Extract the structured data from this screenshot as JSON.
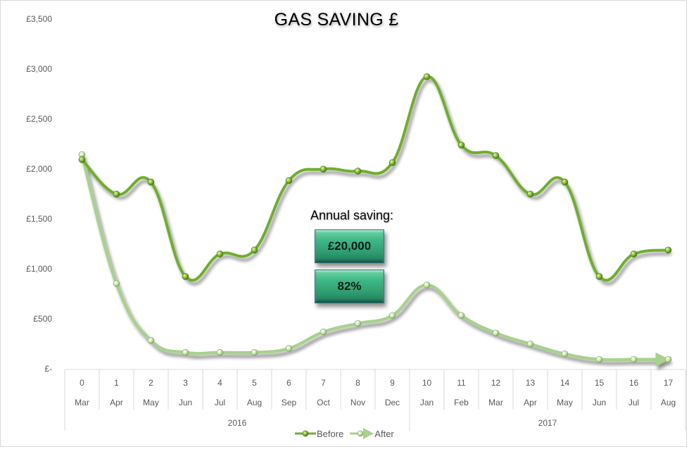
{
  "chart_data": {
    "type": "line",
    "title": "GAS SAVING £",
    "xlabel": "",
    "ylabel": "",
    "ylim": [
      0,
      3500
    ],
    "yticks": [
      "£-",
      "£500",
      "£1,000",
      "£1,500",
      "£2,000",
      "£2,500",
      "£3,000",
      "£3,500"
    ],
    "ytick_values": [
      0,
      500,
      1000,
      1500,
      2000,
      2500,
      3000,
      3500
    ],
    "x": [
      0,
      1,
      2,
      3,
      4,
      5,
      6,
      7,
      8,
      9,
      10,
      11,
      12,
      13,
      14,
      15,
      16,
      17
    ],
    "months": [
      "Mar",
      "Apr",
      "May",
      "Jun",
      "Jul",
      "Aug",
      "Sep",
      "Oct",
      "Nov",
      "Dec",
      "Jan",
      "Feb",
      "Mar",
      "Apr",
      "May",
      "Jun",
      "Jul",
      "Aug"
    ],
    "years": [
      {
        "label": "2016",
        "from": 0,
        "to": 9
      },
      {
        "label": "2017",
        "from": 10,
        "to": 17
      }
    ],
    "series": [
      {
        "name": "Before",
        "color": "#70ad2f",
        "values": [
          2100,
          1755,
          1875,
          930,
          1155,
          1195,
          1890,
          2005,
          1985,
          2070,
          2930,
          2245,
          2140,
          1755,
          1875,
          930,
          1155,
          1195
        ]
      },
      {
        "name": "After",
        "color": "#a9d18e",
        "values": [
          2150,
          860,
          290,
          170,
          170,
          170,
          210,
          375,
          460,
          540,
          845,
          540,
          365,
          255,
          155,
          100,
          100,
          100
        ]
      }
    ],
    "grid": false,
    "legend_position": "bottom",
    "annotations": [
      "Annual saving:",
      "£20,000",
      "82%"
    ]
  },
  "annotation": {
    "label": "Annual saving:",
    "amount": "£20,000",
    "percent": "82%"
  },
  "legend": {
    "before": "Before",
    "after": "After"
  }
}
